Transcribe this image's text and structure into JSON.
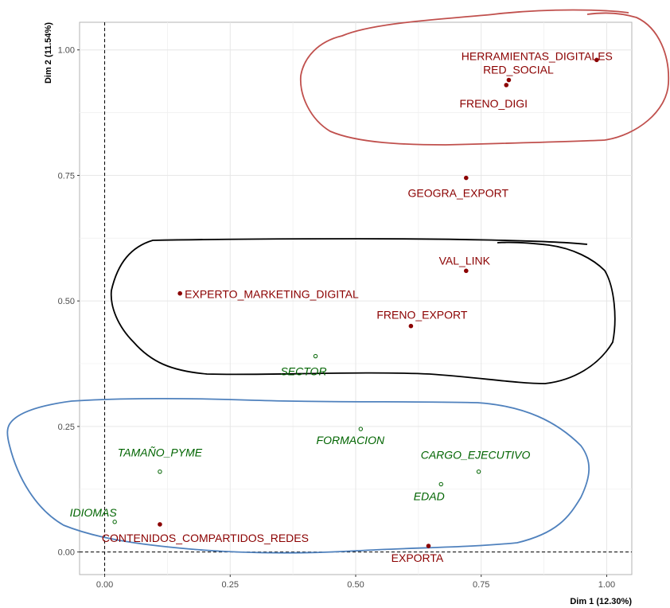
{
  "chart_data": {
    "type": "scatter",
    "xlabel": "Dim 1 (12.30%)",
    "ylabel": "Dim 2 (11.54%)",
    "xlim": [
      -0.05,
      1.05
    ],
    "ylim": [
      -0.045,
      1.055
    ],
    "x_ticks": [
      "0.00",
      "0.25",
      "0.50",
      "0.75",
      "1.00"
    ],
    "y_ticks": [
      "0.00",
      "0.25",
      "0.50",
      "0.75",
      "1.00"
    ],
    "x_tick_values": [
      0,
      0.25,
      0.5,
      0.75,
      1.0
    ],
    "y_tick_values": [
      0,
      0.25,
      0.5,
      0.75,
      1.0
    ],
    "grid": true,
    "reference_lines": {
      "x": 0,
      "y": 0
    },
    "colors": {
      "active": "#8b0000",
      "supplementary": "#006400",
      "grid": "#e6e6e6",
      "panel_border": "#b3b3b3"
    },
    "series": [
      {
        "style": "active",
        "points": [
          {
            "label": "HERRAMIENTAS_DIGITALES",
            "x": 0.98,
            "y": 0.98
          },
          {
            "label": "RED_SOCIAL",
            "x": 0.805,
            "y": 0.94
          },
          {
            "label": "FRENO_DIGI",
            "x": 0.8,
            "y": 0.93
          },
          {
            "label": "GEOGRA_EXPORT",
            "x": 0.72,
            "y": 0.745
          },
          {
            "label": "VAL_LINK",
            "x": 0.72,
            "y": 0.56
          },
          {
            "label": "EXPERTO_MARKETING_DIGITAL",
            "x": 0.15,
            "y": 0.515
          },
          {
            "label": "FRENO_EXPORT",
            "x": 0.61,
            "y": 0.45
          },
          {
            "label": "CONTENIDOS_COMPARTIDOS_REDES",
            "x": 0.11,
            "y": 0.055
          },
          {
            "label": "EXPORTA",
            "x": 0.645,
            "y": 0.012
          }
        ]
      },
      {
        "style": "supplementary",
        "points": [
          {
            "label": "SECTOR",
            "x": 0.42,
            "y": 0.39
          },
          {
            "label": "FORMACION",
            "x": 0.51,
            "y": 0.245
          },
          {
            "label": "TAMAÑO_PYME",
            "x": 0.11,
            "y": 0.16
          },
          {
            "label": "CARGO_EJECUTIVO",
            "x": 0.745,
            "y": 0.16
          },
          {
            "label": "EDAD",
            "x": 0.67,
            "y": 0.135
          },
          {
            "label": "IDIOMAS",
            "x": 0.02,
            "y": 0.06
          }
        ]
      }
    ],
    "annotations": [
      {
        "shape": "freehand-outline",
        "color": "#c0504d",
        "encloses": [
          "HERRAMIENTAS_DIGITALES",
          "RED_SOCIAL",
          "FRENO_DIGI"
        ]
      },
      {
        "shape": "freehand-outline",
        "color": "#000000",
        "encloses": [
          "VAL_LINK",
          "EXPERTO_MARKETING_DIGITAL",
          "FRENO_EXPORT",
          "SECTOR"
        ]
      },
      {
        "shape": "freehand-outline",
        "color": "#4f81bd",
        "encloses": [
          "FORMACION",
          "TAMAÑO_PYME",
          "CARGO_EJECUTIVO",
          "EDAD",
          "IDIOMAS",
          "CONTENIDOS_COMPARTIDOS_REDES",
          "EXPORTA"
        ]
      }
    ]
  }
}
